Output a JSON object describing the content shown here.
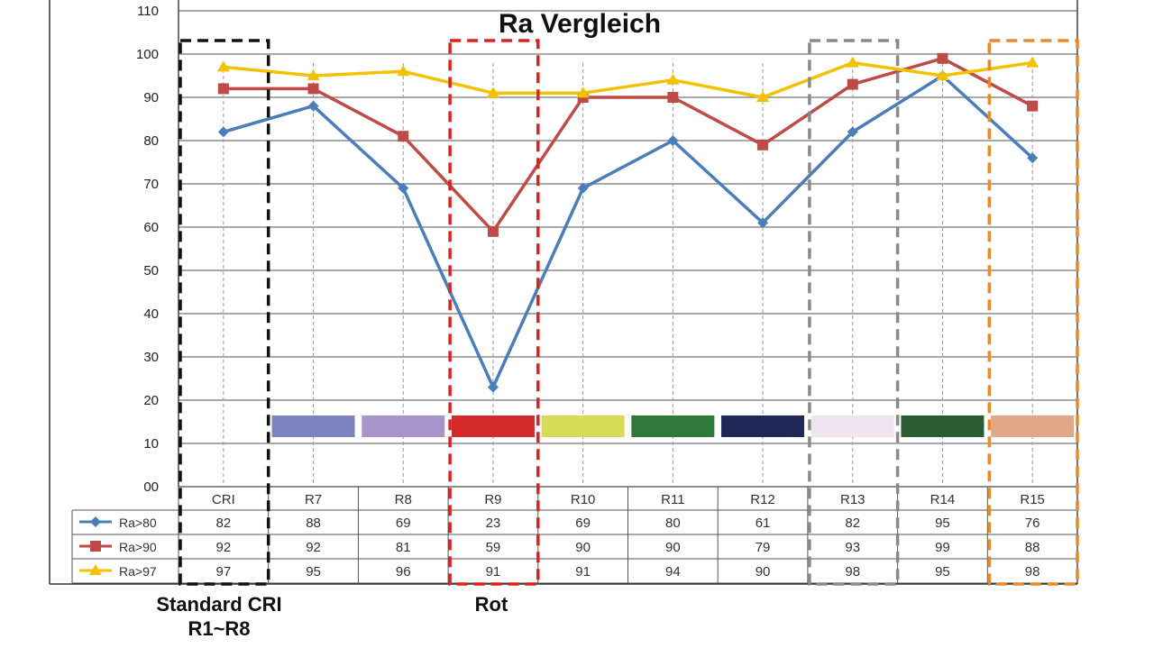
{
  "chart_data": {
    "type": "line",
    "title": "Ra Vergleich",
    "categories": [
      "CRI",
      "R7",
      "R8",
      "R9",
      "R10",
      "R11",
      "R12",
      "R13",
      "R14",
      "R15"
    ],
    "y_ticks": [
      "00",
      "10",
      "20",
      "30",
      "40",
      "50",
      "60",
      "70",
      "80",
      "90",
      "100",
      "110"
    ],
    "ylim": [
      0,
      110
    ],
    "grid": true,
    "legend": "table-left",
    "series": [
      {
        "name": "Ra>80",
        "color": "#4a7ebb",
        "marker": "diamond",
        "values": [
          82,
          88,
          69,
          23,
          69,
          80,
          61,
          82,
          95,
          76
        ]
      },
      {
        "name": "Ra>90",
        "color": "#be4b48",
        "marker": "square",
        "values": [
          92,
          92,
          81,
          59,
          90,
          90,
          79,
          93,
          99,
          88
        ]
      },
      {
        "name": "Ra>97",
        "color": "#f2c200",
        "marker": "triangle",
        "values": [
          97,
          95,
          96,
          91,
          91,
          94,
          90,
          98,
          95,
          98
        ]
      }
    ],
    "color_swatches": [
      "#7b84bf",
      "#a894c8",
      "#d42a2a",
      "#d6dc55",
      "#2f7a3a",
      "#202858",
      "#efe4ef",
      "#2a5c34",
      "#e0a888"
    ],
    "highlight_groups": [
      {
        "label": "Standard CRI\nR1~R8",
        "category": "CRI",
        "color": "#111111"
      },
      {
        "label": "Rot",
        "category": "R9",
        "color": "#e0201f"
      },
      {
        "label": "",
        "category": "R13",
        "color": "#8a8a8a"
      },
      {
        "label": "",
        "category": "R15",
        "color": "#e8892a"
      }
    ],
    "annotations": {
      "standard_cri_line1": "Standard CRI",
      "standard_cri_line2": "R1~R8",
      "rot": "Rot"
    }
  }
}
